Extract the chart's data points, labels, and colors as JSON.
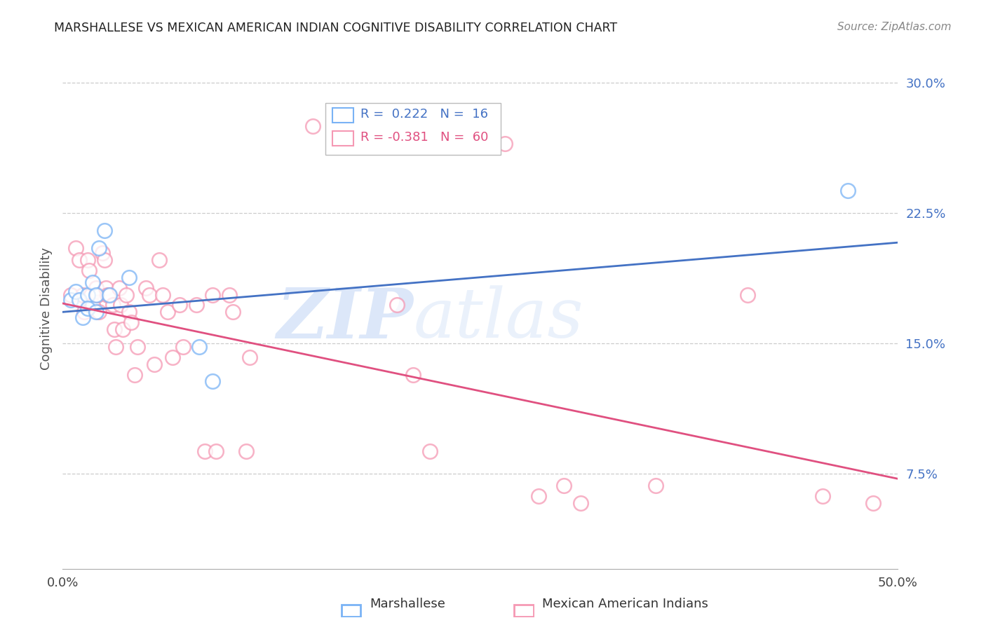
{
  "title": "MARSHALLESE VS MEXICAN AMERICAN INDIAN COGNITIVE DISABILITY CORRELATION CHART",
  "source": "Source: ZipAtlas.com",
  "ylabel": "Cognitive Disability",
  "right_yticks": [
    "30.0%",
    "22.5%",
    "15.0%",
    "7.5%"
  ],
  "right_ytick_vals": [
    0.3,
    0.225,
    0.15,
    0.075
  ],
  "xlim": [
    0.0,
    0.5
  ],
  "ylim": [
    0.02,
    0.32
  ],
  "blue_color": "#7ab3f5",
  "pink_color": "#f599b4",
  "blue_line_color": "#4472c4",
  "pink_line_color": "#e05080",
  "blue_line_x": [
    0.0,
    0.5
  ],
  "blue_line_y": [
    0.168,
    0.208
  ],
  "pink_line_x": [
    0.0,
    0.5
  ],
  "pink_line_y": [
    0.173,
    0.072
  ],
  "blue_scatter_x": [
    0.005,
    0.008,
    0.01,
    0.012,
    0.015,
    0.015,
    0.018,
    0.02,
    0.02,
    0.022,
    0.025,
    0.028,
    0.04,
    0.082,
    0.09,
    0.47
  ],
  "blue_scatter_y": [
    0.175,
    0.18,
    0.175,
    0.165,
    0.178,
    0.17,
    0.185,
    0.178,
    0.168,
    0.205,
    0.215,
    0.178,
    0.188,
    0.148,
    0.128,
    0.238
  ],
  "pink_scatter_x": [
    0.005,
    0.008,
    0.01,
    0.012,
    0.013,
    0.015,
    0.016,
    0.017,
    0.018,
    0.02,
    0.021,
    0.022,
    0.024,
    0.025,
    0.026,
    0.027,
    0.028,
    0.03,
    0.031,
    0.032,
    0.034,
    0.035,
    0.036,
    0.038,
    0.04,
    0.041,
    0.043,
    0.045,
    0.05,
    0.052,
    0.055,
    0.058,
    0.06,
    0.063,
    0.066,
    0.07,
    0.072,
    0.08,
    0.085,
    0.09,
    0.092,
    0.1,
    0.102,
    0.11,
    0.112,
    0.15,
    0.175,
    0.18,
    0.2,
    0.21,
    0.22,
    0.25,
    0.265,
    0.285,
    0.3,
    0.31,
    0.355,
    0.41,
    0.455,
    0.485
  ],
  "pink_scatter_y": [
    0.178,
    0.205,
    0.198,
    0.178,
    0.168,
    0.198,
    0.192,
    0.178,
    0.172,
    0.182,
    0.178,
    0.168,
    0.202,
    0.198,
    0.182,
    0.178,
    0.178,
    0.172,
    0.158,
    0.148,
    0.182,
    0.172,
    0.158,
    0.178,
    0.168,
    0.162,
    0.132,
    0.148,
    0.182,
    0.178,
    0.138,
    0.198,
    0.178,
    0.168,
    0.142,
    0.172,
    0.148,
    0.172,
    0.088,
    0.178,
    0.088,
    0.178,
    0.168,
    0.088,
    0.142,
    0.275,
    0.272,
    0.272,
    0.172,
    0.132,
    0.088,
    0.265,
    0.265,
    0.062,
    0.068,
    0.058,
    0.068,
    0.178,
    0.062,
    0.058
  ],
  "background_color": "#ffffff",
  "grid_color": "#cccccc"
}
